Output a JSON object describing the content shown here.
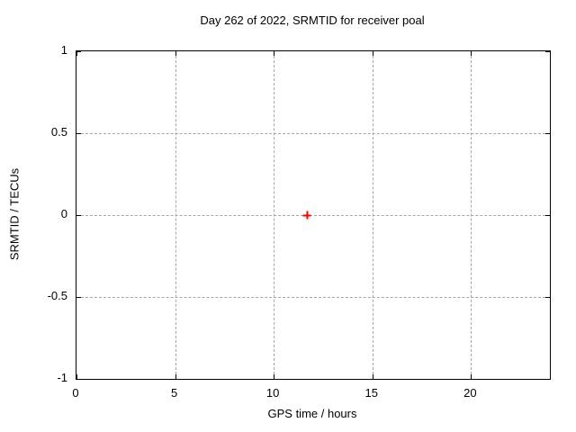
{
  "chart_data": {
    "type": "scatter",
    "title": "Day 262 of 2022, SRMTID for receiver poal",
    "xlabel": "GPS time / hours",
    "ylabel": "SRMTID / TECUs",
    "xlim": [
      0,
      24
    ],
    "ylim": [
      -1,
      1
    ],
    "xticks": [
      0,
      5,
      10,
      15,
      20
    ],
    "yticks": [
      1,
      0.5,
      0,
      -0.5,
      -1
    ],
    "ytick_labels": [
      "1",
      "0.5",
      "0",
      "-0.5",
      "-1"
    ],
    "grid": true,
    "legend": "none",
    "series": [
      {
        "name": "SRMTID",
        "marker": "plus",
        "color": "#ff0000",
        "points": [
          {
            "x": 11.7,
            "y": 0
          }
        ]
      }
    ],
    "colors": {
      "background": "#ffffff",
      "border": "#000000",
      "grid": "#a6a6a6",
      "text": "#000000",
      "marker": "#ff0000"
    }
  }
}
